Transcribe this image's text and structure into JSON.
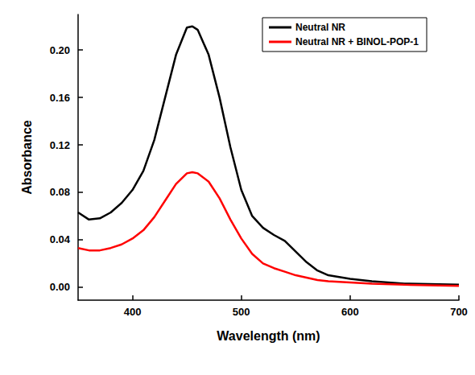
{
  "chart_data": {
    "type": "line",
    "x_label": "Wavelength (nm)",
    "y_label": "Absorbance",
    "x": [
      350,
      360,
      370,
      380,
      390,
      400,
      410,
      420,
      430,
      440,
      450,
      455,
      460,
      470,
      480,
      490,
      500,
      510,
      520,
      530,
      540,
      550,
      560,
      570,
      580,
      600,
      620,
      650,
      700
    ],
    "series": [
      {
        "name": "Neutral NR",
        "color": "#000000",
        "values": [
          0.063,
          0.057,
          0.058,
          0.063,
          0.071,
          0.082,
          0.098,
          0.124,
          0.16,
          0.196,
          0.219,
          0.22,
          0.217,
          0.196,
          0.16,
          0.118,
          0.082,
          0.06,
          0.05,
          0.044,
          0.039,
          0.03,
          0.021,
          0.014,
          0.01,
          0.007,
          0.005,
          0.003,
          0.002
        ]
      },
      {
        "name": "Neutral NR + BINOL-POP-1",
        "color": "#ff0000",
        "values": [
          0.033,
          0.031,
          0.031,
          0.033,
          0.036,
          0.041,
          0.048,
          0.059,
          0.073,
          0.087,
          0.096,
          0.097,
          0.096,
          0.089,
          0.075,
          0.057,
          0.041,
          0.028,
          0.02,
          0.016,
          0.013,
          0.01,
          0.008,
          0.006,
          0.005,
          0.004,
          0.003,
          0.002,
          0.001
        ]
      }
    ],
    "xlim": [
      350,
      700
    ],
    "xticks": [
      400,
      500,
      600,
      700
    ],
    "ylim": [
      -0.011,
      0.23
    ],
    "yticks": [
      {
        "value": 0,
        "label": "0.00"
      },
      {
        "value": 0.04,
        "label": "0.04"
      },
      {
        "value": 0.08,
        "label": "0.08"
      },
      {
        "value": 0.12,
        "label": "0.12"
      },
      {
        "value": 0.16,
        "label": "0.16"
      },
      {
        "value": 0.2,
        "label": "0.20"
      }
    ],
    "grid": false,
    "legend": "upper right"
  }
}
